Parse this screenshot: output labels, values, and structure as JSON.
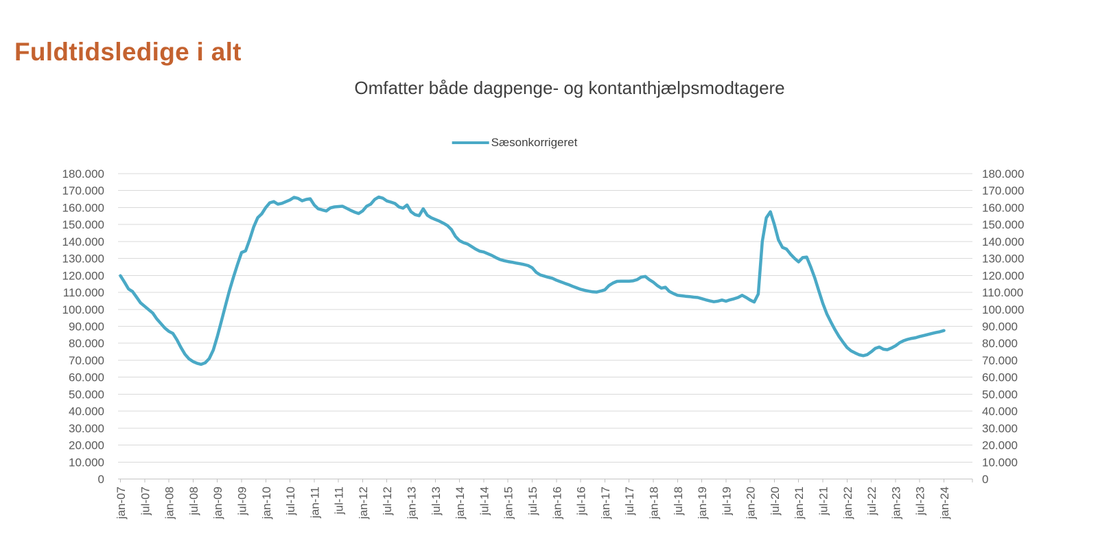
{
  "page": {
    "title": "Fuldtidsledige i alt"
  },
  "chart": {
    "subtitle": "Omfatter både dagpenge- og kontanthjælpsmodtagere",
    "legend_label": "Sæsonkorrigeret"
  },
  "colors": {
    "title_text": "#c4622f",
    "subtitle_text": "#3f3f3f",
    "axis_text": "#595959",
    "gridline": "#d9d9d9",
    "axis_line": "#bfbfbf",
    "series_line": "#4aa9c6"
  },
  "chart_data": {
    "type": "line",
    "title": "Omfatter både dagpenge- og kontanthjælpsmodtagere",
    "legend_entries": [
      "Sæsonkorrigeret"
    ],
    "legend_position": "top-center",
    "grid": "horizontal-only",
    "y_axis_sides": "left-and-right",
    "ylim": [
      0,
      180000
    ],
    "y_ticks": [
      0,
      10000,
      20000,
      30000,
      40000,
      50000,
      60000,
      70000,
      80000,
      90000,
      100000,
      110000,
      120000,
      130000,
      140000,
      150000,
      160000,
      170000,
      180000
    ],
    "y_tick_labels": [
      "0",
      "10.000",
      "20.000",
      "30.000",
      "40.000",
      "50.000",
      "60.000",
      "70.000",
      "80.000",
      "90.000",
      "100.000",
      "110.000",
      "120.000",
      "130.000",
      "140.000",
      "150.000",
      "160.000",
      "170.000",
      "180.000"
    ],
    "x_tick_labels": [
      "jan-07",
      "jul-07",
      "jan-08",
      "jul-08",
      "jan-09",
      "jul-09",
      "jan-10",
      "jul-10",
      "jan-11",
      "jul-11",
      "jan-12",
      "jul-12",
      "jan-13",
      "jul-13",
      "jan-14",
      "jul-14",
      "jan-15",
      "jul-15",
      "jan-16",
      "jul-16",
      "jan-17",
      "jul-17",
      "jan-18",
      "jul-18",
      "jan-19",
      "jul-19",
      "jan-20",
      "jul-20",
      "jan-21",
      "jul-21",
      "jan-22",
      "jul-22",
      "jan-23",
      "jul-23",
      "jan-24"
    ],
    "x_tick_interval_months": 6,
    "x_label_rotation_deg": -90,
    "series": [
      {
        "name": "Sæsonkorrigeret",
        "color": "#4aa9c6",
        "frequency": "monthly",
        "start": "jan-07",
        "end": "jan-24",
        "values": [
          119800,
          116000,
          112000,
          110500,
          107200,
          103800,
          101800,
          99800,
          97800,
          94400,
          91700,
          89000,
          87000,
          85800,
          82000,
          77500,
          73500,
          70800,
          69200,
          68200,
          67600,
          68500,
          71000,
          76000,
          84000,
          93000,
          102000,
          111000,
          119000,
          126500,
          133500,
          134500,
          141000,
          148500,
          154000,
          156300,
          160000,
          162800,
          163500,
          162000,
          162500,
          163500,
          164500,
          166000,
          165400,
          164000,
          164800,
          165200,
          161500,
          159300,
          158600,
          158000,
          159800,
          160400,
          160600,
          160800,
          159600,
          158400,
          157300,
          156500,
          158000,
          160800,
          162000,
          164800,
          166200,
          165500,
          163900,
          163200,
          162400,
          160400,
          159600,
          161500,
          157500,
          155800,
          155200,
          159300,
          155500,
          154000,
          153000,
          152000,
          150800,
          149400,
          147000,
          143000,
          140500,
          139300,
          138500,
          137000,
          135500,
          134300,
          133800,
          132800,
          131800,
          130500,
          129400,
          128700,
          128200,
          127800,
          127300,
          126900,
          126400,
          125800,
          124500,
          121800,
          120300,
          119600,
          118900,
          118300,
          117200,
          116300,
          115400,
          114600,
          113600,
          112700,
          111800,
          111200,
          110700,
          110300,
          110200,
          110800,
          111500,
          114000,
          115500,
          116500,
          116600,
          116600,
          116600,
          116800,
          117500,
          119000,
          119400,
          117500,
          116000,
          114000,
          112500,
          113000,
          110500,
          109300,
          108300,
          108000,
          107700,
          107500,
          107200,
          107000,
          106300,
          105600,
          105000,
          104500,
          104800,
          105500,
          104800,
          105600,
          106200,
          107000,
          108300,
          107000,
          105500,
          104300,
          109000,
          140000,
          154000,
          157500,
          150000,
          141000,
          136500,
          135500,
          132500,
          130000,
          128000,
          130500,
          130800,
          125000,
          118500,
          111000,
          103500,
          97300,
          92500,
          88000,
          84000,
          80700,
          77500,
          75500,
          74300,
          73200,
          72700,
          73300,
          75000,
          77000,
          77800,
          76500,
          76200,
          77200,
          78500,
          80300,
          81500,
          82300,
          82900,
          83300,
          84000,
          84600,
          85200,
          85800,
          86300,
          86800,
          87500
        ]
      }
    ]
  }
}
